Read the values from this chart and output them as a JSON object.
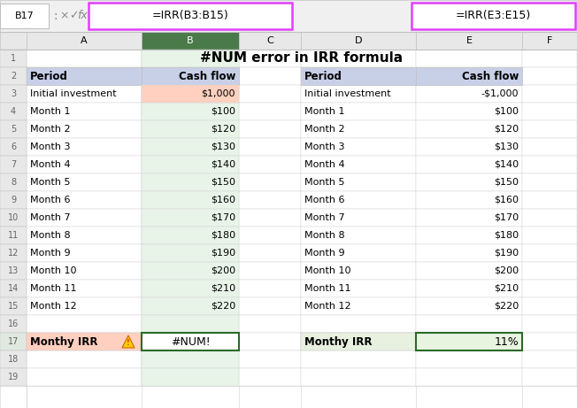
{
  "title": "#NUM error in IRR formula",
  "formula_bar_left": "=IRR(B3:B15)",
  "formula_bar_right": "=IRR(E3:E15)",
  "cell_ref": "B17",
  "left_table": {
    "header": [
      "Period",
      "Cash flow"
    ],
    "rows": [
      [
        "Initial investment",
        "$1,000"
      ],
      [
        "Month 1",
        "$100"
      ],
      [
        "Month 2",
        "$120"
      ],
      [
        "Month 3",
        "$130"
      ],
      [
        "Month 4",
        "$140"
      ],
      [
        "Month 5",
        "$150"
      ],
      [
        "Month 6",
        "$160"
      ],
      [
        "Month 7",
        "$170"
      ],
      [
        "Month 8",
        "$180"
      ],
      [
        "Month 9",
        "$190"
      ],
      [
        "Month 10",
        "$200"
      ],
      [
        "Month 11",
        "$210"
      ],
      [
        "Month 12",
        "$220"
      ]
    ],
    "footer_label": "Monthy IRR",
    "footer_value": "#NUM!"
  },
  "right_table": {
    "header": [
      "Period",
      "Cash flow"
    ],
    "rows": [
      [
        "Initial investment",
        "-$1,000"
      ],
      [
        "Month 1",
        "$100"
      ],
      [
        "Month 2",
        "$120"
      ],
      [
        "Month 3",
        "$130"
      ],
      [
        "Month 4",
        "$140"
      ],
      [
        "Month 5",
        "$150"
      ],
      [
        "Month 6",
        "$160"
      ],
      [
        "Month 7",
        "$170"
      ],
      [
        "Month 8",
        "$180"
      ],
      [
        "Month 9",
        "$190"
      ],
      [
        "Month 10",
        "$200"
      ],
      [
        "Month 11",
        "$210"
      ],
      [
        "Month 12",
        "$220"
      ]
    ],
    "footer_label": "Monthy IRR",
    "footer_value": "11%"
  },
  "colors": {
    "header_bg": "#c8d0e8",
    "top_bar_bg": "#f0f0f0",
    "b_col_header_bg": "#4a7a4a",
    "b_col_header_text": "#ffffff",
    "col_header_bg": "#e8e8e8",
    "row_num_bg": "#e8e8e8",
    "row_num_selected_bg": "#e0e8e0",
    "b_col_selected_bg": "#e8f4e8",
    "formula_pink_border": "#e040fb",
    "green_border": "#2a6a2a",
    "footer_left_bg": "#ffd0c0",
    "footer_right_bg": "#e8f0e0",
    "initial_investment_b_bg": "#ffd0c0",
    "grid_line": "#d0d0d0",
    "warning_fill": "#ffcc00",
    "warning_edge": "#cc6600",
    "warning_text": "#cc4400"
  }
}
